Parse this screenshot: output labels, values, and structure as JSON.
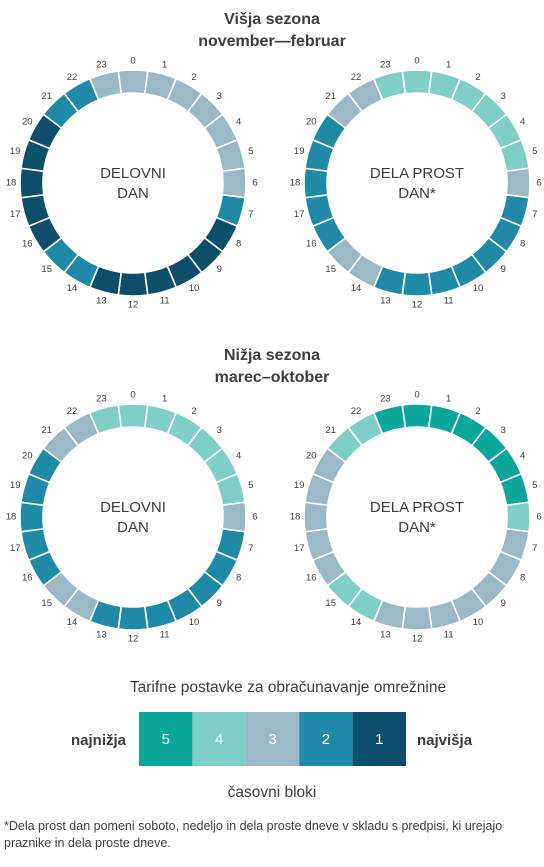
{
  "colors": {
    "block_1": "#0d4f6b",
    "block_2": "#1e8aa8",
    "block_3": "#9bb9c4",
    "block_4": "#7fcfc6",
    "block_5": "#0aa79a",
    "text": "#3d3d3d"
  },
  "seasons": [
    {
      "title_line1": "Višja sezona",
      "title_line2": "november—februar"
    },
    {
      "title_line1": "Nižja sezona",
      "title_line2": "marec–oktober"
    }
  ],
  "chart_data": [
    {
      "type": "radial-bar",
      "season": 0,
      "center_line1": "DELOVNI",
      "center_line2": "DAN",
      "hours": [
        0,
        1,
        2,
        3,
        4,
        5,
        6,
        7,
        8,
        9,
        10,
        11,
        12,
        13,
        14,
        15,
        16,
        17,
        18,
        19,
        20,
        21,
        22,
        23
      ],
      "blocks": [
        3,
        3,
        3,
        3,
        3,
        3,
        3,
        2,
        1,
        1,
        1,
        1,
        1,
        1,
        2,
        2,
        1,
        1,
        1,
        1,
        1,
        2,
        2,
        3
      ]
    },
    {
      "type": "radial-bar",
      "season": 0,
      "center_line1": "DELA PROST",
      "center_line2": "DAN*",
      "hours": [
        0,
        1,
        2,
        3,
        4,
        5,
        6,
        7,
        8,
        9,
        10,
        11,
        12,
        13,
        14,
        15,
        16,
        17,
        18,
        19,
        20,
        21,
        22,
        23
      ],
      "blocks": [
        4,
        4,
        4,
        4,
        4,
        4,
        3,
        2,
        2,
        2,
        2,
        2,
        2,
        2,
        3,
        3,
        2,
        2,
        2,
        2,
        2,
        3,
        3,
        4
      ]
    },
    {
      "type": "radial-bar",
      "season": 1,
      "center_line1": "DELOVNI",
      "center_line2": "DAN",
      "hours": [
        0,
        1,
        2,
        3,
        4,
        5,
        6,
        7,
        8,
        9,
        10,
        11,
        12,
        13,
        14,
        15,
        16,
        17,
        18,
        19,
        20,
        21,
        22,
        23
      ],
      "blocks": [
        4,
        4,
        4,
        4,
        4,
        4,
        3,
        2,
        2,
        2,
        2,
        2,
        2,
        2,
        3,
        3,
        2,
        2,
        2,
        2,
        2,
        3,
        3,
        4
      ]
    },
    {
      "type": "radial-bar",
      "season": 1,
      "center_line1": "DELA PROST",
      "center_line2": "DAN*",
      "hours": [
        0,
        1,
        2,
        3,
        4,
        5,
        6,
        7,
        8,
        9,
        10,
        11,
        12,
        13,
        14,
        15,
        16,
        17,
        18,
        19,
        20,
        21,
        22,
        23
      ],
      "blocks": [
        5,
        5,
        5,
        5,
        5,
        5,
        4,
        3,
        3,
        3,
        3,
        3,
        3,
        3,
        4,
        4,
        3,
        3,
        3,
        3,
        3,
        4,
        4,
        5
      ]
    }
  ],
  "legend": {
    "title": "Tarifne postavke za obračunavanje omrežnine",
    "left_label": "najnižja",
    "right_label": "najvišja",
    "blocks": [
      {
        "value": "5",
        "color": "#0aa79a"
      },
      {
        "value": "4",
        "color": "#7fcfc6"
      },
      {
        "value": "3",
        "color": "#9bb9c4"
      },
      {
        "value": "2",
        "color": "#1e8aa8"
      },
      {
        "value": "1",
        "color": "#0d4f6b"
      }
    ],
    "subtitle": "časovni bloki"
  },
  "footnote": "*Dela prost dan pomeni soboto, nedeljo in dela proste dneve v skladu s predpisi, ki urejajo praznike in dela proste dneve."
}
